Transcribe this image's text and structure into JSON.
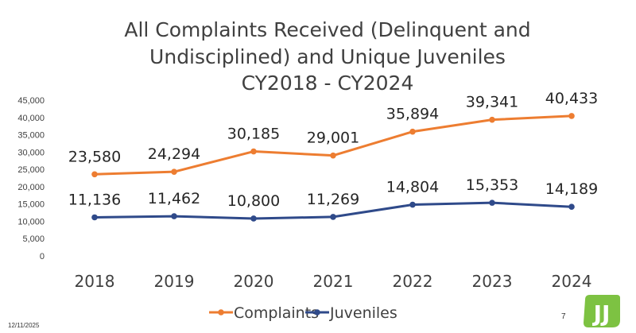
{
  "chart_data": {
    "type": "line",
    "title_lines": [
      "All Complaints Received (Delinquent and",
      "Undisciplined) and Unique Juveniles",
      "CY2018 - CY2024"
    ],
    "x": [
      "2018",
      "2019",
      "2020",
      "2021",
      "2022",
      "2023",
      "2024"
    ],
    "series": [
      {
        "name": "Complaints",
        "color": "#ED7D31",
        "values": [
          23580,
          24294,
          30185,
          29001,
          35894,
          39341,
          40433
        ],
        "labels": [
          "23,580",
          "24,294",
          "30,185",
          "29,001",
          "35,894",
          "39,341",
          "40,433"
        ]
      },
      {
        "name": "Juveniles",
        "color": "#2F4A8A",
        "values": [
          11136,
          11462,
          10800,
          11269,
          14804,
          15353,
          14189
        ],
        "labels": [
          "11,136",
          "11,462",
          "10,800",
          "11,269",
          "14,804",
          "15,353",
          "14,189"
        ]
      }
    ],
    "ylim": [
      0,
      45000
    ],
    "yticks": [
      0,
      5000,
      10000,
      15000,
      20000,
      25000,
      30000,
      35000,
      40000,
      45000
    ],
    "ytick_labels": [
      "0",
      "5,000",
      "10,000",
      "15,000",
      "20,000",
      "25,000",
      "30,000",
      "35,000",
      "40,000",
      "45,000"
    ],
    "grid": false,
    "legend_position": "bottom"
  },
  "footer": {
    "date": "12/11/2025",
    "page_number": "7",
    "logo_text": "JJ",
    "logo_color": "#7DC242"
  }
}
